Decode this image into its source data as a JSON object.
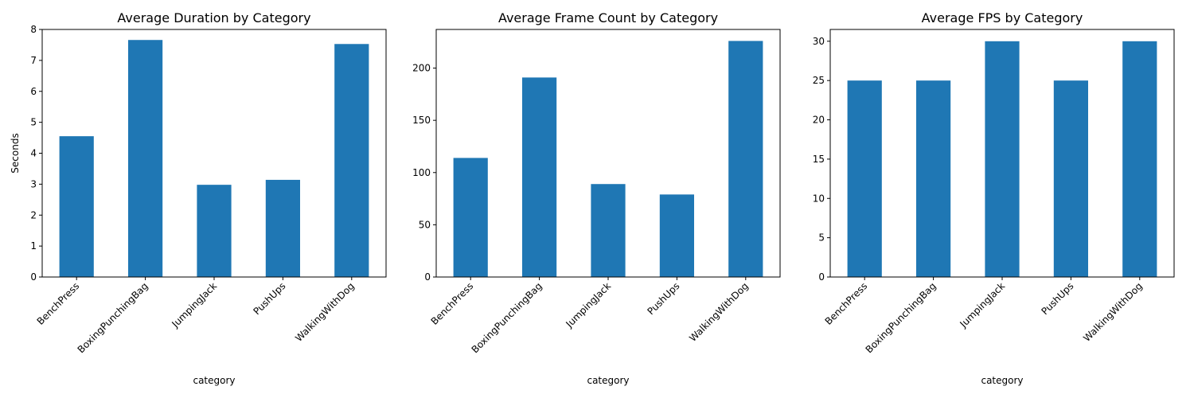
{
  "chart_data": [
    {
      "type": "bar",
      "title": "Average Duration by Category",
      "xlabel": "category",
      "ylabel": "Seconds",
      "categories": [
        "BenchPress",
        "BoxingPunchingBag",
        "JumpingJack",
        "PushUps",
        "WalkingWithDog"
      ],
      "values": [
        4.55,
        7.66,
        2.98,
        3.14,
        7.53
      ],
      "ylim": [
        0,
        8
      ],
      "yticks": [
        "0",
        "1",
        "2",
        "3",
        "4",
        "5",
        "6",
        "7",
        "8"
      ],
      "color": "#1f77b4",
      "grid": false
    },
    {
      "type": "bar",
      "title": "Average Frame Count by Category",
      "xlabel": "category",
      "ylabel": "",
      "categories": [
        "BenchPress",
        "BoxingPunchingBag",
        "JumpingJack",
        "PushUps",
        "WalkingWithDog"
      ],
      "values": [
        114,
        191,
        89,
        79,
        226
      ],
      "ylim": [
        0,
        237
      ],
      "yticks": [
        "0",
        "50",
        "100",
        "150",
        "200"
      ],
      "color": "#1f77b4",
      "grid": false
    },
    {
      "type": "bar",
      "title": "Average FPS by Category",
      "xlabel": "category",
      "ylabel": "",
      "categories": [
        "BenchPress",
        "BoxingPunchingBag",
        "JumpingJack",
        "PushUps",
        "WalkingWithDog"
      ],
      "values": [
        25,
        25,
        30,
        25,
        30
      ],
      "ylim": [
        0,
        31.5
      ],
      "yticks": [
        "0",
        "5",
        "10",
        "15",
        "20",
        "25",
        "30"
      ],
      "color": "#1f77b4",
      "grid": false
    }
  ]
}
